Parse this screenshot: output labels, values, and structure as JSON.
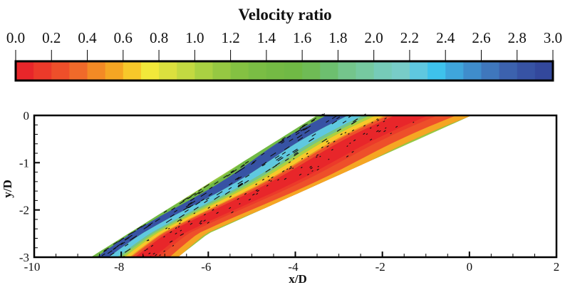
{
  "chart_data": {
    "type": "heatmap",
    "subtype": "filled-contour with velocity vectors",
    "colorbar": {
      "title": "Velocity ratio",
      "range": [
        0.0,
        3.0
      ],
      "levels": 30,
      "tick_labels": [
        "0.0",
        "0.2",
        "0.4",
        "0.6",
        "0.8",
        "1.0",
        "1.2",
        "1.4",
        "1.6",
        "1.8",
        "2.0",
        "2.2",
        "2.4",
        "2.6",
        "2.8",
        "3.0"
      ],
      "colors": [
        "#e8262a",
        "#ec3a2a",
        "#ee4f2a",
        "#f06a2a",
        "#f38a25",
        "#f5a623",
        "#f7c82a",
        "#f2e83a",
        "#dbe03e",
        "#c3d941",
        "#aad142",
        "#96c842",
        "#84c142",
        "#7abd44",
        "#74ba44",
        "#70b945",
        "#6fbb55",
        "#6dbf6f",
        "#74c58c",
        "#76c9a0",
        "#76cbb8",
        "#78ccc8",
        "#5fc8e0",
        "#3ec2ec",
        "#3fa6dc",
        "#3f8dcc",
        "#3f77bc",
        "#3c62ae",
        "#3753a4",
        "#33489c"
      ],
      "placement": "top"
    },
    "xlabel": "x/D",
    "ylabel": "y/D",
    "xlim": [
      -10,
      2
    ],
    "ylim": [
      -3,
      0
    ],
    "xticks": [
      "-10",
      "-8",
      "-6",
      "-4",
      "-2",
      "0",
      "2"
    ],
    "yticks": [
      "0",
      "-1",
      "-2",
      "-3"
    ],
    "grid": false,
    "region": {
      "left_edge": [
        [
          -8.7,
          -3
        ],
        [
          -3.5,
          0
        ]
      ],
      "right_edge": [
        [
          -6.7,
          -3
        ],
        [
          -6.0,
          -2.5
        ],
        [
          0.05,
          0
        ]
      ],
      "description_bands": [
        {
          "from_left": 0.0,
          "to": 0.06,
          "value": 1.5
        },
        {
          "from_left": 0.06,
          "to": 0.2,
          "value": 2.9
        },
        {
          "from_left": 0.2,
          "to": 0.3,
          "value": 2.2
        },
        {
          "from_left": 0.3,
          "to": 0.38,
          "value": 1.4
        },
        {
          "from_left": 0.38,
          "to": 0.44,
          "value": 0.7
        },
        {
          "from_left": 0.44,
          "to": 0.5,
          "value": 0.4
        },
        {
          "from_left": 0.5,
          "to": 0.78,
          "value": 0.05
        },
        {
          "from_left": 0.78,
          "to": 1.0,
          "value": 0.3
        }
      ]
    }
  }
}
